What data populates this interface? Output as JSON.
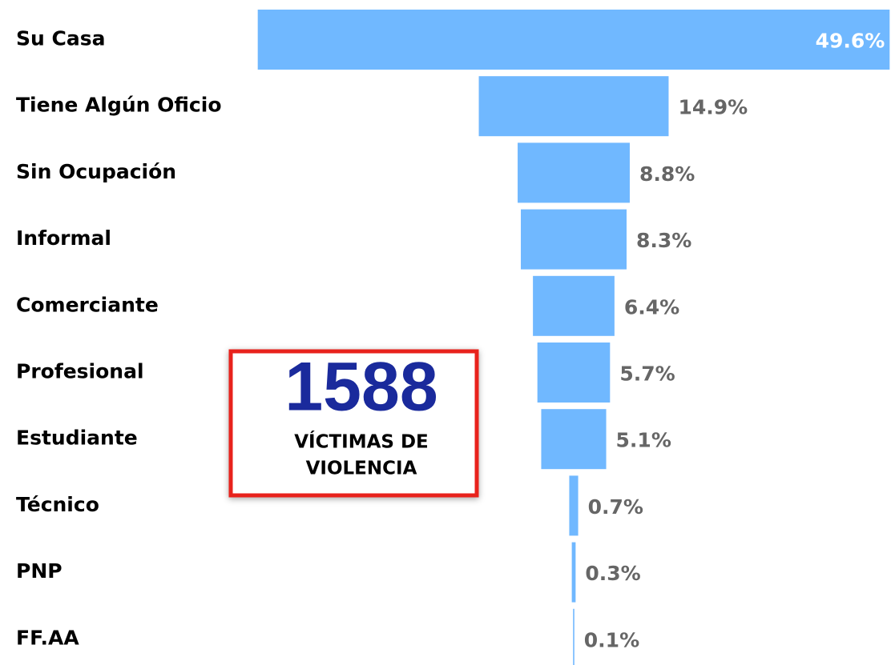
{
  "chart_data": {
    "type": "funnel",
    "categories": [
      "Su Casa",
      "Tiene Algún Oficio",
      "Sin Ocupación",
      "Informal",
      "Comerciante",
      "Profesional",
      "Estudiante",
      "Técnico",
      "PNP",
      "FF.AA"
    ],
    "values": [
      49.6,
      14.9,
      8.8,
      8.3,
      6.4,
      5.7,
      5.1,
      0.7,
      0.3,
      0.1
    ],
    "value_labels": [
      "49.6%",
      "14.9%",
      "8.8%",
      "8.3%",
      "6.4%",
      "5.7%",
      "5.1%",
      "0.7%",
      "0.3%",
      "0.1%"
    ],
    "color": "#70b8ff",
    "annotation": {
      "number": "1588",
      "lines": [
        "VÍCTIMAS DE",
        "VIOLENCIA"
      ]
    }
  }
}
